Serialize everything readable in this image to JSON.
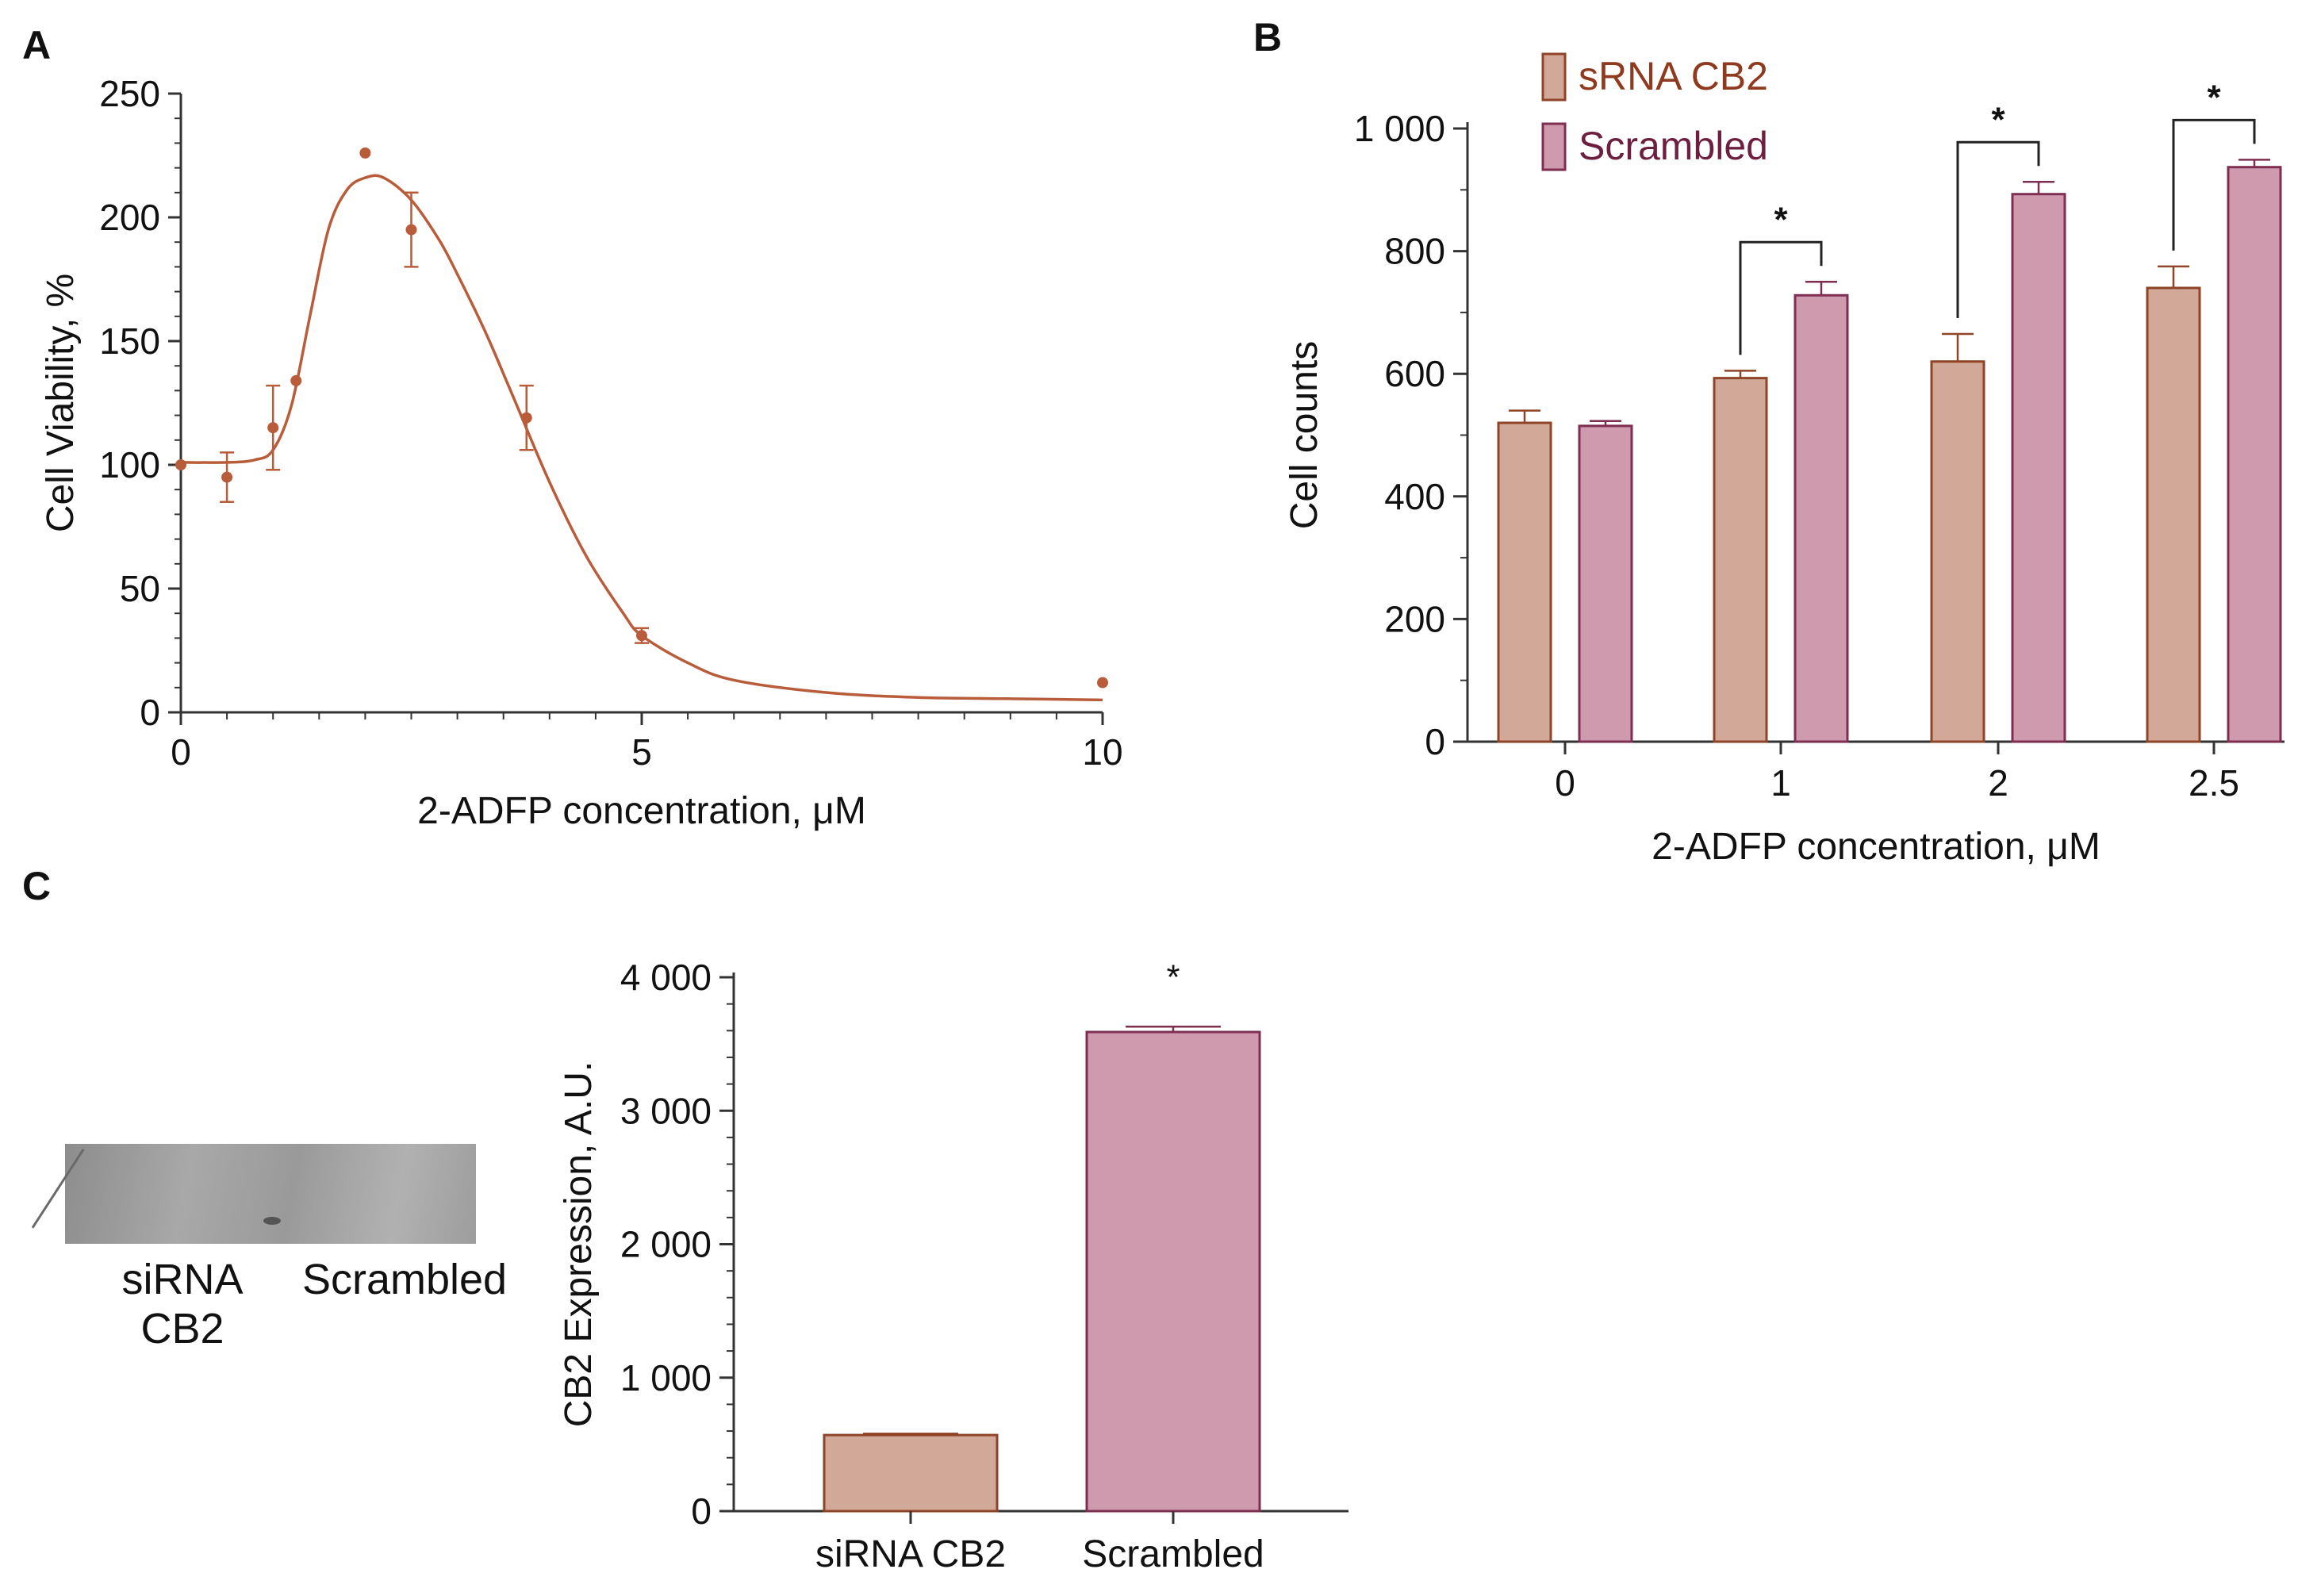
{
  "chart_data": [
    {
      "panel": "A",
      "type": "scatter",
      "xlabel": "2-ADFP concentration, μM",
      "ylabel": "Cell Viability, %",
      "xlim": [
        0,
        10
      ],
      "ylim": [
        0,
        250
      ],
      "x_ticks": [
        "0",
        "5",
        "10"
      ],
      "y_ticks": [
        "0",
        "50",
        "100",
        "150",
        "200",
        "250"
      ],
      "points": [
        {
          "x": 0,
          "y": 100,
          "err": 0
        },
        {
          "x": 0.5,
          "y": 95,
          "err": 10
        },
        {
          "x": 1.0,
          "y": 115,
          "err": 17
        },
        {
          "x": 1.25,
          "y": 134,
          "err": 0
        },
        {
          "x": 2.0,
          "y": 226,
          "err": 0
        },
        {
          "x": 2.5,
          "y": 195,
          "err": 15
        },
        {
          "x": 3.75,
          "y": 119,
          "err": 13
        },
        {
          "x": 5.0,
          "y": 31,
          "err": 3
        },
        {
          "x": 10.0,
          "y": 12,
          "err": 0
        }
      ],
      "fit_curve": {
        "x": [
          0,
          0.5,
          0.8,
          1.0,
          1.2,
          1.4,
          1.6,
          1.8,
          2.0,
          2.2,
          2.5,
          2.8,
          3.0,
          3.3,
          3.6,
          4.0,
          4.4,
          4.8,
          5.0,
          5.5,
          6.0,
          7.0,
          8.0,
          9.0,
          10.0
        ],
        "y": [
          101,
          101,
          102,
          106,
          124,
          160,
          195,
          211,
          216,
          216,
          207,
          191,
          177,
          154,
          128,
          93,
          63,
          40,
          31,
          20,
          13,
          8,
          6,
          5.5,
          5
        ]
      },
      "color": "#b85c3a"
    },
    {
      "panel": "B",
      "type": "bar",
      "xlabel": "2-ADFP concentration, μM",
      "ylabel": "Cell counts",
      "ylim": [
        0,
        1000
      ],
      "y_ticks": [
        "0",
        "200",
        "400",
        "600",
        "800",
        "1 000"
      ],
      "categories": [
        "0",
        "1",
        "2",
        "2.5"
      ],
      "series": [
        {
          "name": "sRNA CB2",
          "values": [
            520,
            593,
            620,
            740
          ],
          "errors": [
            20,
            12,
            45,
            35
          ],
          "fill": "#d2a898",
          "stroke": "#8f4427",
          "legend_color": "#8f3a1e"
        },
        {
          "name": "Scrambled",
          "values": [
            515,
            728,
            893,
            937
          ],
          "errors": [
            8,
            22,
            20,
            12
          ],
          "fill": "#d09aae",
          "stroke": "#7e2f51",
          "legend_color": "#6e1f40"
        }
      ],
      "significance": [
        "",
        "*",
        "*",
        "*"
      ]
    },
    {
      "panel": "C",
      "type": "bar",
      "ylabel": "CB2 Expression,  A.U.",
      "ylim": [
        0,
        4000
      ],
      "y_ticks": [
        "0",
        "1 000",
        "2 000",
        "3 000",
        "4 000"
      ],
      "categories": [
        "siRNA CB2",
        "Scrambled"
      ],
      "values": [
        570,
        3590
      ],
      "errors": [
        10,
        40
      ],
      "fills": [
        "#d2a898",
        "#d09aae"
      ],
      "strokes": [
        "#8f4427",
        "#7e2f51"
      ],
      "significance": [
        "",
        "*"
      ]
    }
  ],
  "panels": {
    "a": {
      "letter": "A"
    },
    "b": {
      "letter": "B"
    },
    "c": {
      "letter": "C"
    }
  },
  "blot": {
    "label_left": "siRNA\nCB2",
    "label_right": "Scrambled"
  }
}
